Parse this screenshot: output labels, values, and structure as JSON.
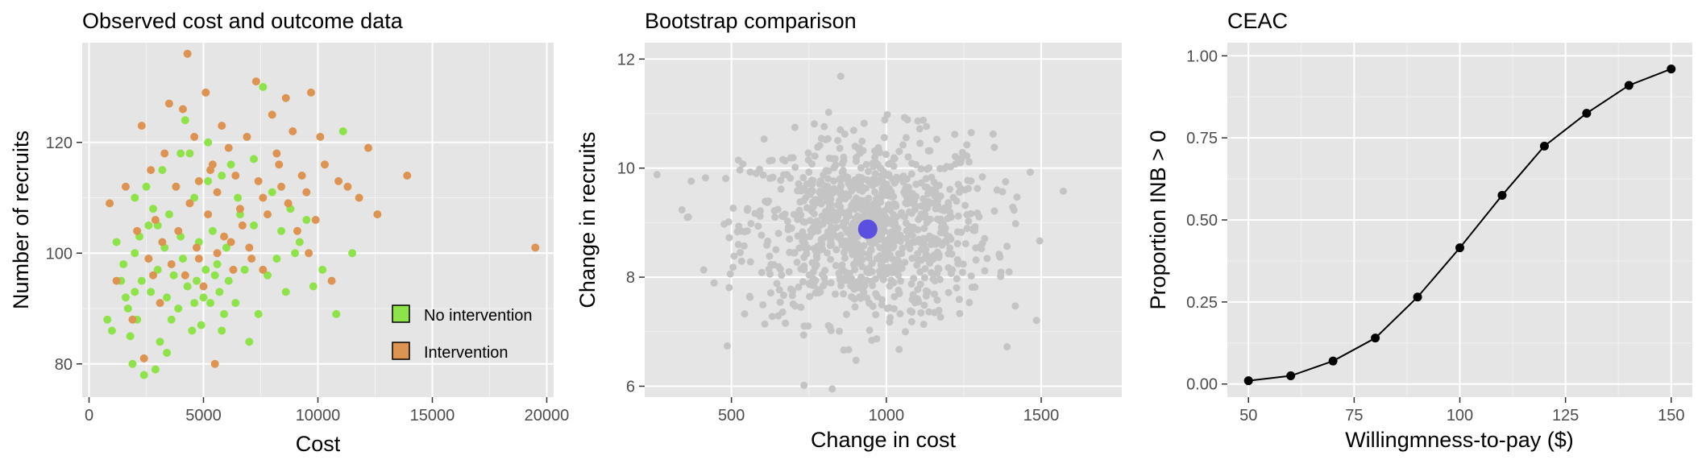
{
  "chart_data": [
    {
      "type": "scatter",
      "title": "Observed cost and outcome data",
      "xlabel": "Cost",
      "ylabel": "Number of recruits",
      "xlim": [
        -300,
        20300
      ],
      "ylim": [
        74,
        138
      ],
      "xticks": [
        "0",
        "5000",
        "10000",
        "15000",
        "20000"
      ],
      "yticks": [
        "80",
        "100",
        "120"
      ],
      "grid": true,
      "legend": {
        "placement": "bottom-right",
        "entries": [
          "No intervention",
          "Intervention"
        ]
      },
      "colors": {
        "No intervention": "#8fe34a",
        "Intervention": "#dd9452"
      },
      "series": [
        {
          "name": "No intervention",
          "points": [
            [
              800,
              88
            ],
            [
              1000,
              86
            ],
            [
              1200,
              102
            ],
            [
              1400,
              95
            ],
            [
              1500,
              98
            ],
            [
              1600,
              92
            ],
            [
              1700,
              90
            ],
            [
              1800,
              85
            ],
            [
              1900,
              80
            ],
            [
              2000,
              100
            ],
            [
              2000,
              110
            ],
            [
              2100,
              88
            ],
            [
              2200,
              103
            ],
            [
              2300,
              95
            ],
            [
              2400,
              78
            ],
            [
              2500,
              112
            ],
            [
              2600,
              99
            ],
            [
              2700,
              93
            ],
            [
              2800,
              108
            ],
            [
              2900,
              79
            ],
            [
              3000,
              97
            ],
            [
              3000,
              105
            ],
            [
              3100,
              84
            ],
            [
              3200,
              115
            ],
            [
              3300,
              101
            ],
            [
              3400,
              92
            ],
            [
              3500,
              107
            ],
            [
              3600,
              88
            ],
            [
              3700,
              96
            ],
            [
              3800,
              112
            ],
            [
              3900,
              90
            ],
            [
              4000,
              103
            ],
            [
              4100,
              99
            ],
            [
              4200,
              124
            ],
            [
              4300,
              94
            ],
            [
              4400,
              118
            ],
            [
              4500,
              86
            ],
            [
              4600,
              110
            ],
            [
              4700,
              95
            ],
            [
              4800,
              102
            ],
            [
              4900,
              87
            ],
            [
              5000,
              92
            ],
            [
              5100,
              97
            ],
            [
              5200,
              120
            ],
            [
              5300,
              91
            ],
            [
              5400,
              104
            ],
            [
              5500,
              96
            ],
            [
              5600,
              98
            ],
            [
              5700,
              93
            ],
            [
              5800,
              114
            ],
            [
              5900,
              89
            ],
            [
              6000,
              101
            ],
            [
              6100,
              95
            ],
            [
              6200,
              116
            ],
            [
              6400,
              91
            ],
            [
              6600,
              107
            ],
            [
              6800,
              97
            ],
            [
              7000,
              84
            ],
            [
              7200,
              117
            ],
            [
              7400,
              89
            ],
            [
              7600,
              130
            ],
            [
              7800,
              96
            ],
            [
              8000,
              111
            ],
            [
              8200,
              99
            ],
            [
              8400,
              104
            ],
            [
              8600,
              93
            ],
            [
              8800,
              108
            ],
            [
              9000,
              100
            ],
            [
              9200,
              102
            ],
            [
              9500,
              106
            ],
            [
              9800,
              94
            ],
            [
              10200,
              97
            ],
            [
              10800,
              89
            ],
            [
              11100,
              122
            ],
            [
              11500,
              100
            ],
            [
              2000,
              93
            ],
            [
              2600,
              105
            ],
            [
              3400,
              82
            ],
            [
              4000,
              118
            ],
            [
              4600,
              91
            ],
            [
              5200,
              113
            ],
            [
              5800,
              86
            ],
            [
              6500,
              110
            ],
            [
              7200,
              105
            ]
          ]
        },
        {
          "name": "Intervention",
          "points": [
            [
              900,
              109
            ],
            [
              1200,
              95
            ],
            [
              1600,
              112
            ],
            [
              1900,
              88
            ],
            [
              2100,
              104
            ],
            [
              2300,
              123
            ],
            [
              2400,
              81
            ],
            [
              2600,
              99
            ],
            [
              2700,
              115
            ],
            [
              2900,
              106
            ],
            [
              3100,
              91
            ],
            [
              3300,
              118
            ],
            [
              3500,
              127
            ],
            [
              3600,
              98
            ],
            [
              3800,
              112
            ],
            [
              3900,
              104
            ],
            [
              4100,
              126
            ],
            [
              4200,
              96
            ],
            [
              4300,
              136
            ],
            [
              4400,
              109
            ],
            [
              4600,
              121
            ],
            [
              4700,
              101
            ],
            [
              4800,
              113
            ],
            [
              5000,
              94
            ],
            [
              5100,
              129
            ],
            [
              5200,
              107
            ],
            [
              5400,
              116
            ],
            [
              5500,
              80
            ],
            [
              5600,
              111
            ],
            [
              5800,
              123
            ],
            [
              5900,
              103
            ],
            [
              6100,
              119
            ],
            [
              6300,
              97
            ],
            [
              6400,
              114
            ],
            [
              6600,
              108
            ],
            [
              6700,
              105
            ],
            [
              6900,
              121
            ],
            [
              7100,
              99
            ],
            [
              7300,
              131
            ],
            [
              7400,
              113
            ],
            [
              7600,
              110
            ],
            [
              7800,
              107
            ],
            [
              8000,
              125
            ],
            [
              8200,
              118
            ],
            [
              8400,
              112
            ],
            [
              8600,
              128
            ],
            [
              8700,
              109
            ],
            [
              8900,
              122
            ],
            [
              9100,
              104
            ],
            [
              9300,
              114
            ],
            [
              9500,
              111
            ],
            [
              9700,
              129
            ],
            [
              9900,
              106
            ],
            [
              10100,
              121
            ],
            [
              10300,
              116
            ],
            [
              10600,
              95
            ],
            [
              10900,
              113
            ],
            [
              11300,
              112
            ],
            [
              11800,
              110
            ],
            [
              12200,
              119
            ],
            [
              12600,
              107
            ],
            [
              13900,
              114
            ],
            [
              19500,
              101
            ],
            [
              2800,
              96
            ],
            [
              3200,
              102
            ],
            [
              4800,
              99
            ],
            [
              5600,
              100
            ],
            [
              6200,
              102
            ],
            [
              7000,
              101
            ],
            [
              7600,
              97
            ],
            [
              8300,
              116
            ],
            [
              9600,
              100
            ],
            [
              5300,
              115
            ]
          ]
        }
      ]
    },
    {
      "type": "scatter",
      "title": "Bootstrap comparison",
      "xlabel": "Change in cost",
      "ylabel": "Change in recruits",
      "xlim": [
        220,
        1760
      ],
      "ylim": [
        5.8,
        12.3
      ],
      "xticks": [
        "500",
        "1000",
        "1500"
      ],
      "yticks": [
        "6",
        "8",
        "10",
        "12"
      ],
      "grid": true,
      "point_color": "#c4c4c4",
      "highlight_color": "#5b4fe0",
      "highlight_point": [
        940,
        8.88
      ],
      "n_points": 1000,
      "center": [
        940,
        8.9
      ],
      "spread": [
        200,
        0.85
      ]
    },
    {
      "type": "line",
      "title": "CEAC",
      "xlabel": "Willingmness-to-pay ($)",
      "ylabel": "Proportion INB > 0",
      "xlim": [
        45,
        155
      ],
      "ylim": [
        -0.04,
        1.04
      ],
      "xticks": [
        "50",
        "75",
        "100",
        "125",
        "150"
      ],
      "yticks": [
        "0.00",
        "0.25",
        "0.50",
        "0.75",
        "1.00"
      ],
      "grid": true,
      "x": [
        50,
        60,
        70,
        80,
        90,
        100,
        110,
        120,
        130,
        140,
        150
      ],
      "y": [
        0.01,
        0.025,
        0.07,
        0.14,
        0.265,
        0.415,
        0.575,
        0.725,
        0.825,
        0.91,
        0.96
      ]
    }
  ]
}
